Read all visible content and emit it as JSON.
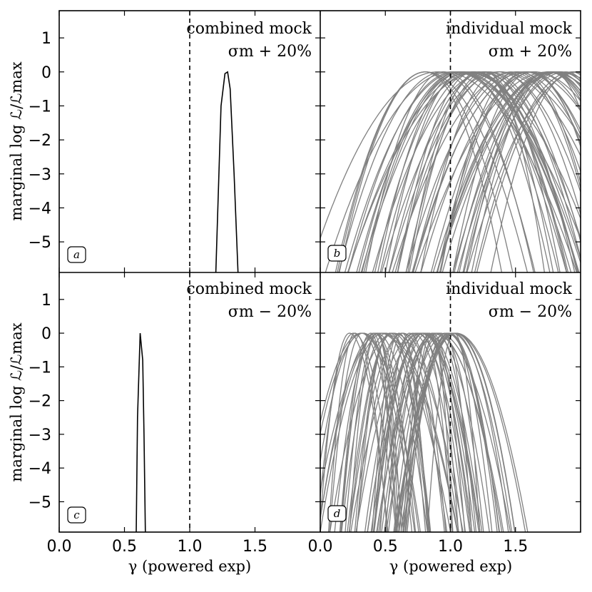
{
  "chart_data": {
    "type": "line",
    "xlabel": "γ (powered exp)",
    "ylabel": "marginal log ℒ/ℒmax",
    "xlim": [
      0.0,
      2.0
    ],
    "ylim": [
      -5.9,
      1.8
    ],
    "xticks": [
      "0.0",
      "0.5",
      "1.0",
      "1.5"
    ],
    "yticks": [
      "1",
      "0",
      "−1",
      "−2",
      "−3",
      "−4",
      "−5"
    ],
    "reference_line_x": 1.0,
    "panels": [
      {
        "tag": "a",
        "annotation_line1": "combined mock",
        "annotation_line2": "σm  + 20%",
        "color": "#000000",
        "curves": [
          {
            "x": [
              1.2,
              1.24,
              1.27,
              1.29,
              1.31,
              1.34,
              1.37
            ],
            "y": [
              -5.9,
              -1.0,
              -0.05,
              0.0,
              -0.5,
              -3.0,
              -5.9
            ]
          }
        ]
      },
      {
        "tag": "b",
        "annotation_line1": "individual mock",
        "annotation_line2": "σm  + 20%",
        "color": "#808080",
        "family": {
          "count": 60,
          "peak_min": 0.8,
          "peak_max": 2.0,
          "width_min": 0.55,
          "width_max": 1.05
        }
      },
      {
        "tag": "c",
        "annotation_line1": "combined mock",
        "annotation_line2": "σm  − 20%",
        "color": "#000000",
        "curves": [
          {
            "x": [
              0.59,
              0.6,
              0.62,
              0.64,
              0.65,
              0.66
            ],
            "y": [
              -5.9,
              -2.5,
              0.0,
              -0.8,
              -3.0,
              -5.9
            ]
          }
        ]
      },
      {
        "tag": "d",
        "annotation_line1": "individual mock",
        "annotation_line2": "σm  − 20%",
        "color": "#808080",
        "family": {
          "count": 60,
          "peak_min": 0.22,
          "peak_max": 1.05,
          "width_min": 0.2,
          "width_max": 0.55
        }
      }
    ]
  }
}
